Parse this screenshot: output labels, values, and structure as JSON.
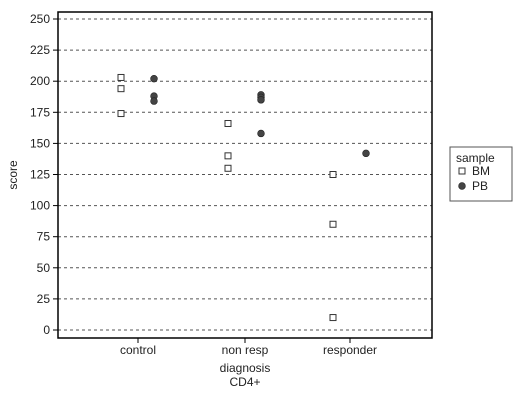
{
  "chart_data": {
    "type": "scatter",
    "ylabel": "score",
    "xlabel": "diagnosis",
    "xlabel2": "CD4+",
    "categories": [
      "control",
      "non resp",
      "responder"
    ],
    "ylim": [
      0,
      250
    ],
    "yticks": [
      0,
      25,
      50,
      75,
      100,
      125,
      150,
      175,
      200,
      225,
      250
    ],
    "grid": true,
    "legend": {
      "title": "sample",
      "position": "right"
    },
    "series": [
      {
        "name": "BM",
        "marker": "open-square",
        "points": [
          {
            "x": "control",
            "y": 203
          },
          {
            "x": "control",
            "y": 194
          },
          {
            "x": "control",
            "y": 174
          },
          {
            "x": "non resp",
            "y": 166
          },
          {
            "x": "non resp",
            "y": 140
          },
          {
            "x": "non resp",
            "y": 130
          },
          {
            "x": "responder",
            "y": 125
          },
          {
            "x": "responder",
            "y": 85
          },
          {
            "x": "responder",
            "y": 10
          }
        ]
      },
      {
        "name": "PB",
        "marker": "filled-circle",
        "points": [
          {
            "x": "control",
            "y": 202
          },
          {
            "x": "control",
            "y": 188
          },
          {
            "x": "control",
            "y": 184
          },
          {
            "x": "non resp",
            "y": 189
          },
          {
            "x": "non resp",
            "y": 187
          },
          {
            "x": "non resp",
            "y": 185
          },
          {
            "x": "non resp",
            "y": 158
          },
          {
            "x": "responder",
            "y": 142
          }
        ]
      }
    ]
  }
}
